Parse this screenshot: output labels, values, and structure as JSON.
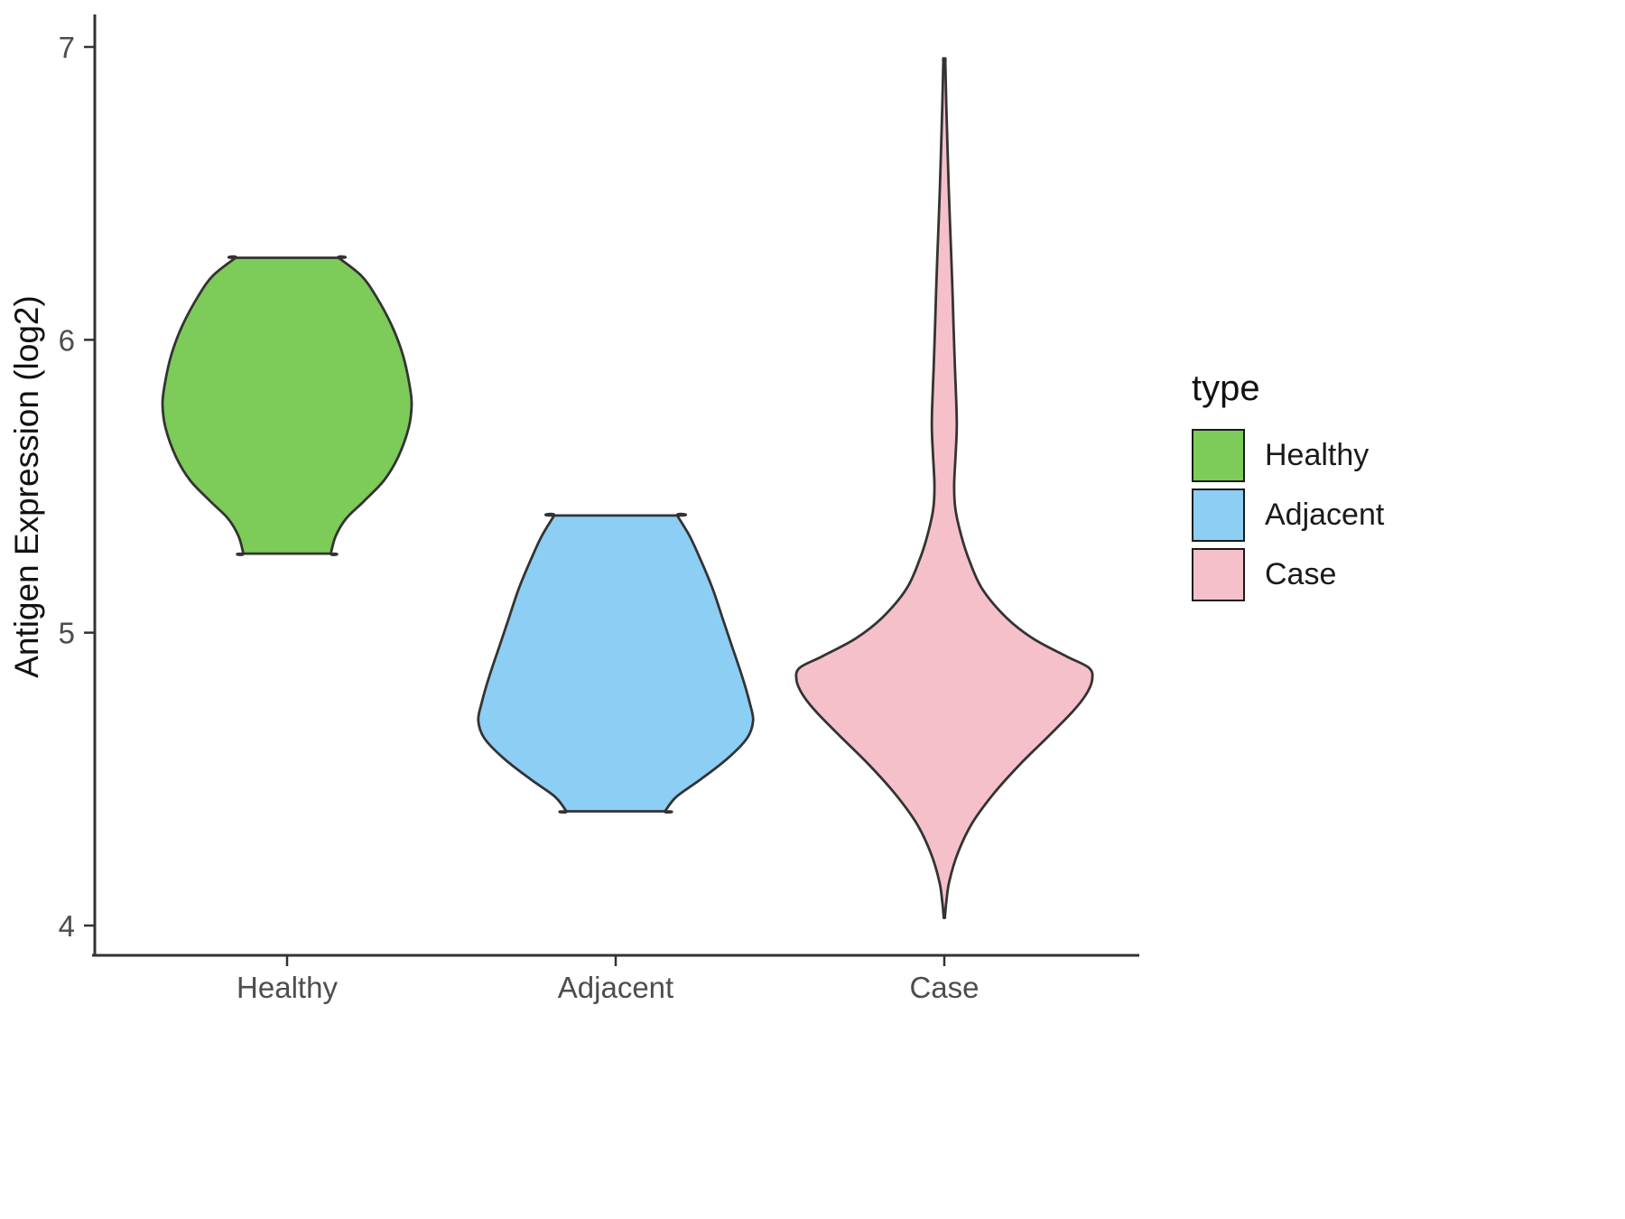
{
  "chart_data": {
    "type": "violin",
    "title": "",
    "xlabel": "",
    "ylabel": "Antigen Expression (log2)",
    "ylim": [
      4,
      7
    ],
    "yticks": [
      4,
      5,
      6,
      7
    ],
    "categories": [
      "Healthy",
      "Adjacent",
      "Case"
    ],
    "grid": false,
    "legend": {
      "title": "type",
      "position": "right",
      "entries": [
        {
          "label": "Healthy",
          "color": "#7DCB58"
        },
        {
          "label": "Adjacent",
          "color": "#8DCEF4"
        },
        {
          "label": "Case",
          "color": "#F6C0CB"
        }
      ]
    },
    "style": {
      "outline_color": "#333333",
      "axis_color": "#333333",
      "tick_label_color": "#4D4D4D",
      "axis_title_color": "#111111",
      "background": "#FFFFFF"
    },
    "series": [
      {
        "name": "Healthy",
        "fill": "#7DCB58",
        "trimmed": true,
        "profile": [
          [
            6.28,
            0.157
          ],
          [
            6.22,
            0.225
          ],
          [
            6.15,
            0.27
          ],
          [
            6.05,
            0.318
          ],
          [
            5.95,
            0.352
          ],
          [
            5.85,
            0.372
          ],
          [
            5.78,
            0.379
          ],
          [
            5.7,
            0.37
          ],
          [
            5.6,
            0.338
          ],
          [
            5.52,
            0.295
          ],
          [
            5.45,
            0.235
          ],
          [
            5.39,
            0.18
          ],
          [
            5.33,
            0.148
          ],
          [
            5.27,
            0.133
          ]
        ]
      },
      {
        "name": "Adjacent",
        "fill": "#8DCEF4",
        "trimmed": true,
        "profile": [
          [
            5.4,
            0.187
          ],
          [
            5.33,
            0.225
          ],
          [
            5.25,
            0.258
          ],
          [
            5.15,
            0.295
          ],
          [
            5.05,
            0.325
          ],
          [
            4.95,
            0.355
          ],
          [
            4.85,
            0.385
          ],
          [
            4.76,
            0.408
          ],
          [
            4.7,
            0.418
          ],
          [
            4.64,
            0.4
          ],
          [
            4.57,
            0.34
          ],
          [
            4.5,
            0.26
          ],
          [
            4.44,
            0.185
          ],
          [
            4.39,
            0.15
          ]
        ]
      },
      {
        "name": "Case",
        "fill": "#F6C0CB",
        "trimmed": false,
        "profile": [
          [
            6.95,
            0.003
          ],
          [
            6.8,
            0.006
          ],
          [
            6.65,
            0.01
          ],
          [
            6.5,
            0.014
          ],
          [
            6.35,
            0.019
          ],
          [
            6.2,
            0.024
          ],
          [
            6.05,
            0.028
          ],
          [
            5.92,
            0.032
          ],
          [
            5.8,
            0.036
          ],
          [
            5.7,
            0.038
          ],
          [
            5.6,
            0.034
          ],
          [
            5.5,
            0.03
          ],
          [
            5.42,
            0.034
          ],
          [
            5.33,
            0.052
          ],
          [
            5.25,
            0.075
          ],
          [
            5.15,
            0.115
          ],
          [
            5.05,
            0.19
          ],
          [
            4.98,
            0.27
          ],
          [
            4.92,
            0.37
          ],
          [
            4.88,
            0.44
          ],
          [
            4.84,
            0.45
          ],
          [
            4.79,
            0.432
          ],
          [
            4.73,
            0.39
          ],
          [
            4.65,
            0.32
          ],
          [
            4.55,
            0.23
          ],
          [
            4.45,
            0.15
          ],
          [
            4.35,
            0.085
          ],
          [
            4.25,
            0.042
          ],
          [
            4.15,
            0.015
          ],
          [
            4.08,
            0.006
          ],
          [
            4.03,
            0.002
          ]
        ]
      }
    ]
  }
}
